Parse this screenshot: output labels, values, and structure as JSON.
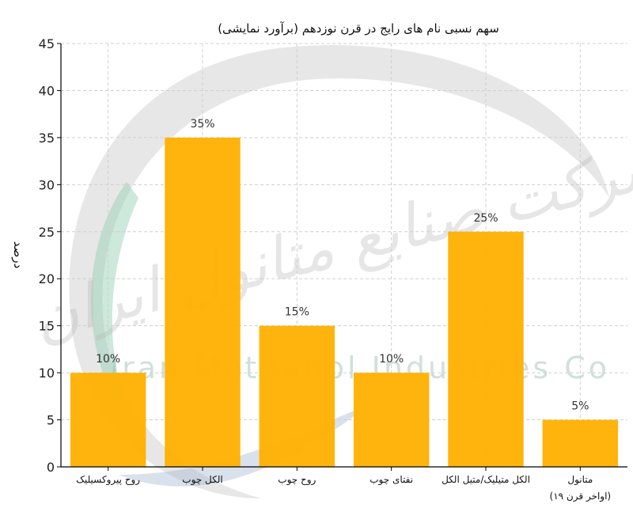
{
  "watermark": {
    "text_fa": "شرکت صنایع متانول ایران",
    "text_en": "Iran Methanol Industries Co"
  },
  "colors": {
    "bar": "#FFB000",
    "grid": "#cfcfcf",
    "axis": "#000000"
  },
  "chart_data": {
    "type": "bar",
    "title": "سهم نسبی نام های رایج در قرن نوزدهم (برآورد نمایشی)",
    "xlabel": "",
    "ylabel": "درصد",
    "ylim": [
      0,
      45
    ],
    "yticks": [
      0,
      5,
      10,
      15,
      20,
      25,
      30,
      35,
      40,
      45
    ],
    "grid": true,
    "categories": [
      [
        "روح پیروکسیلیک"
      ],
      [
        "الکل چوب"
      ],
      [
        "روح چوب"
      ],
      [
        "نفتای چوب"
      ],
      [
        "الکل متیلیک/متیل الکل"
      ],
      [
        "متانول",
        "(اواخر قرن ۱۹)"
      ]
    ],
    "values": [
      10,
      35,
      15,
      10,
      25,
      5
    ],
    "data_labels": [
      "10%",
      "35%",
      "15%",
      "10%",
      "25%",
      "5%"
    ]
  }
}
